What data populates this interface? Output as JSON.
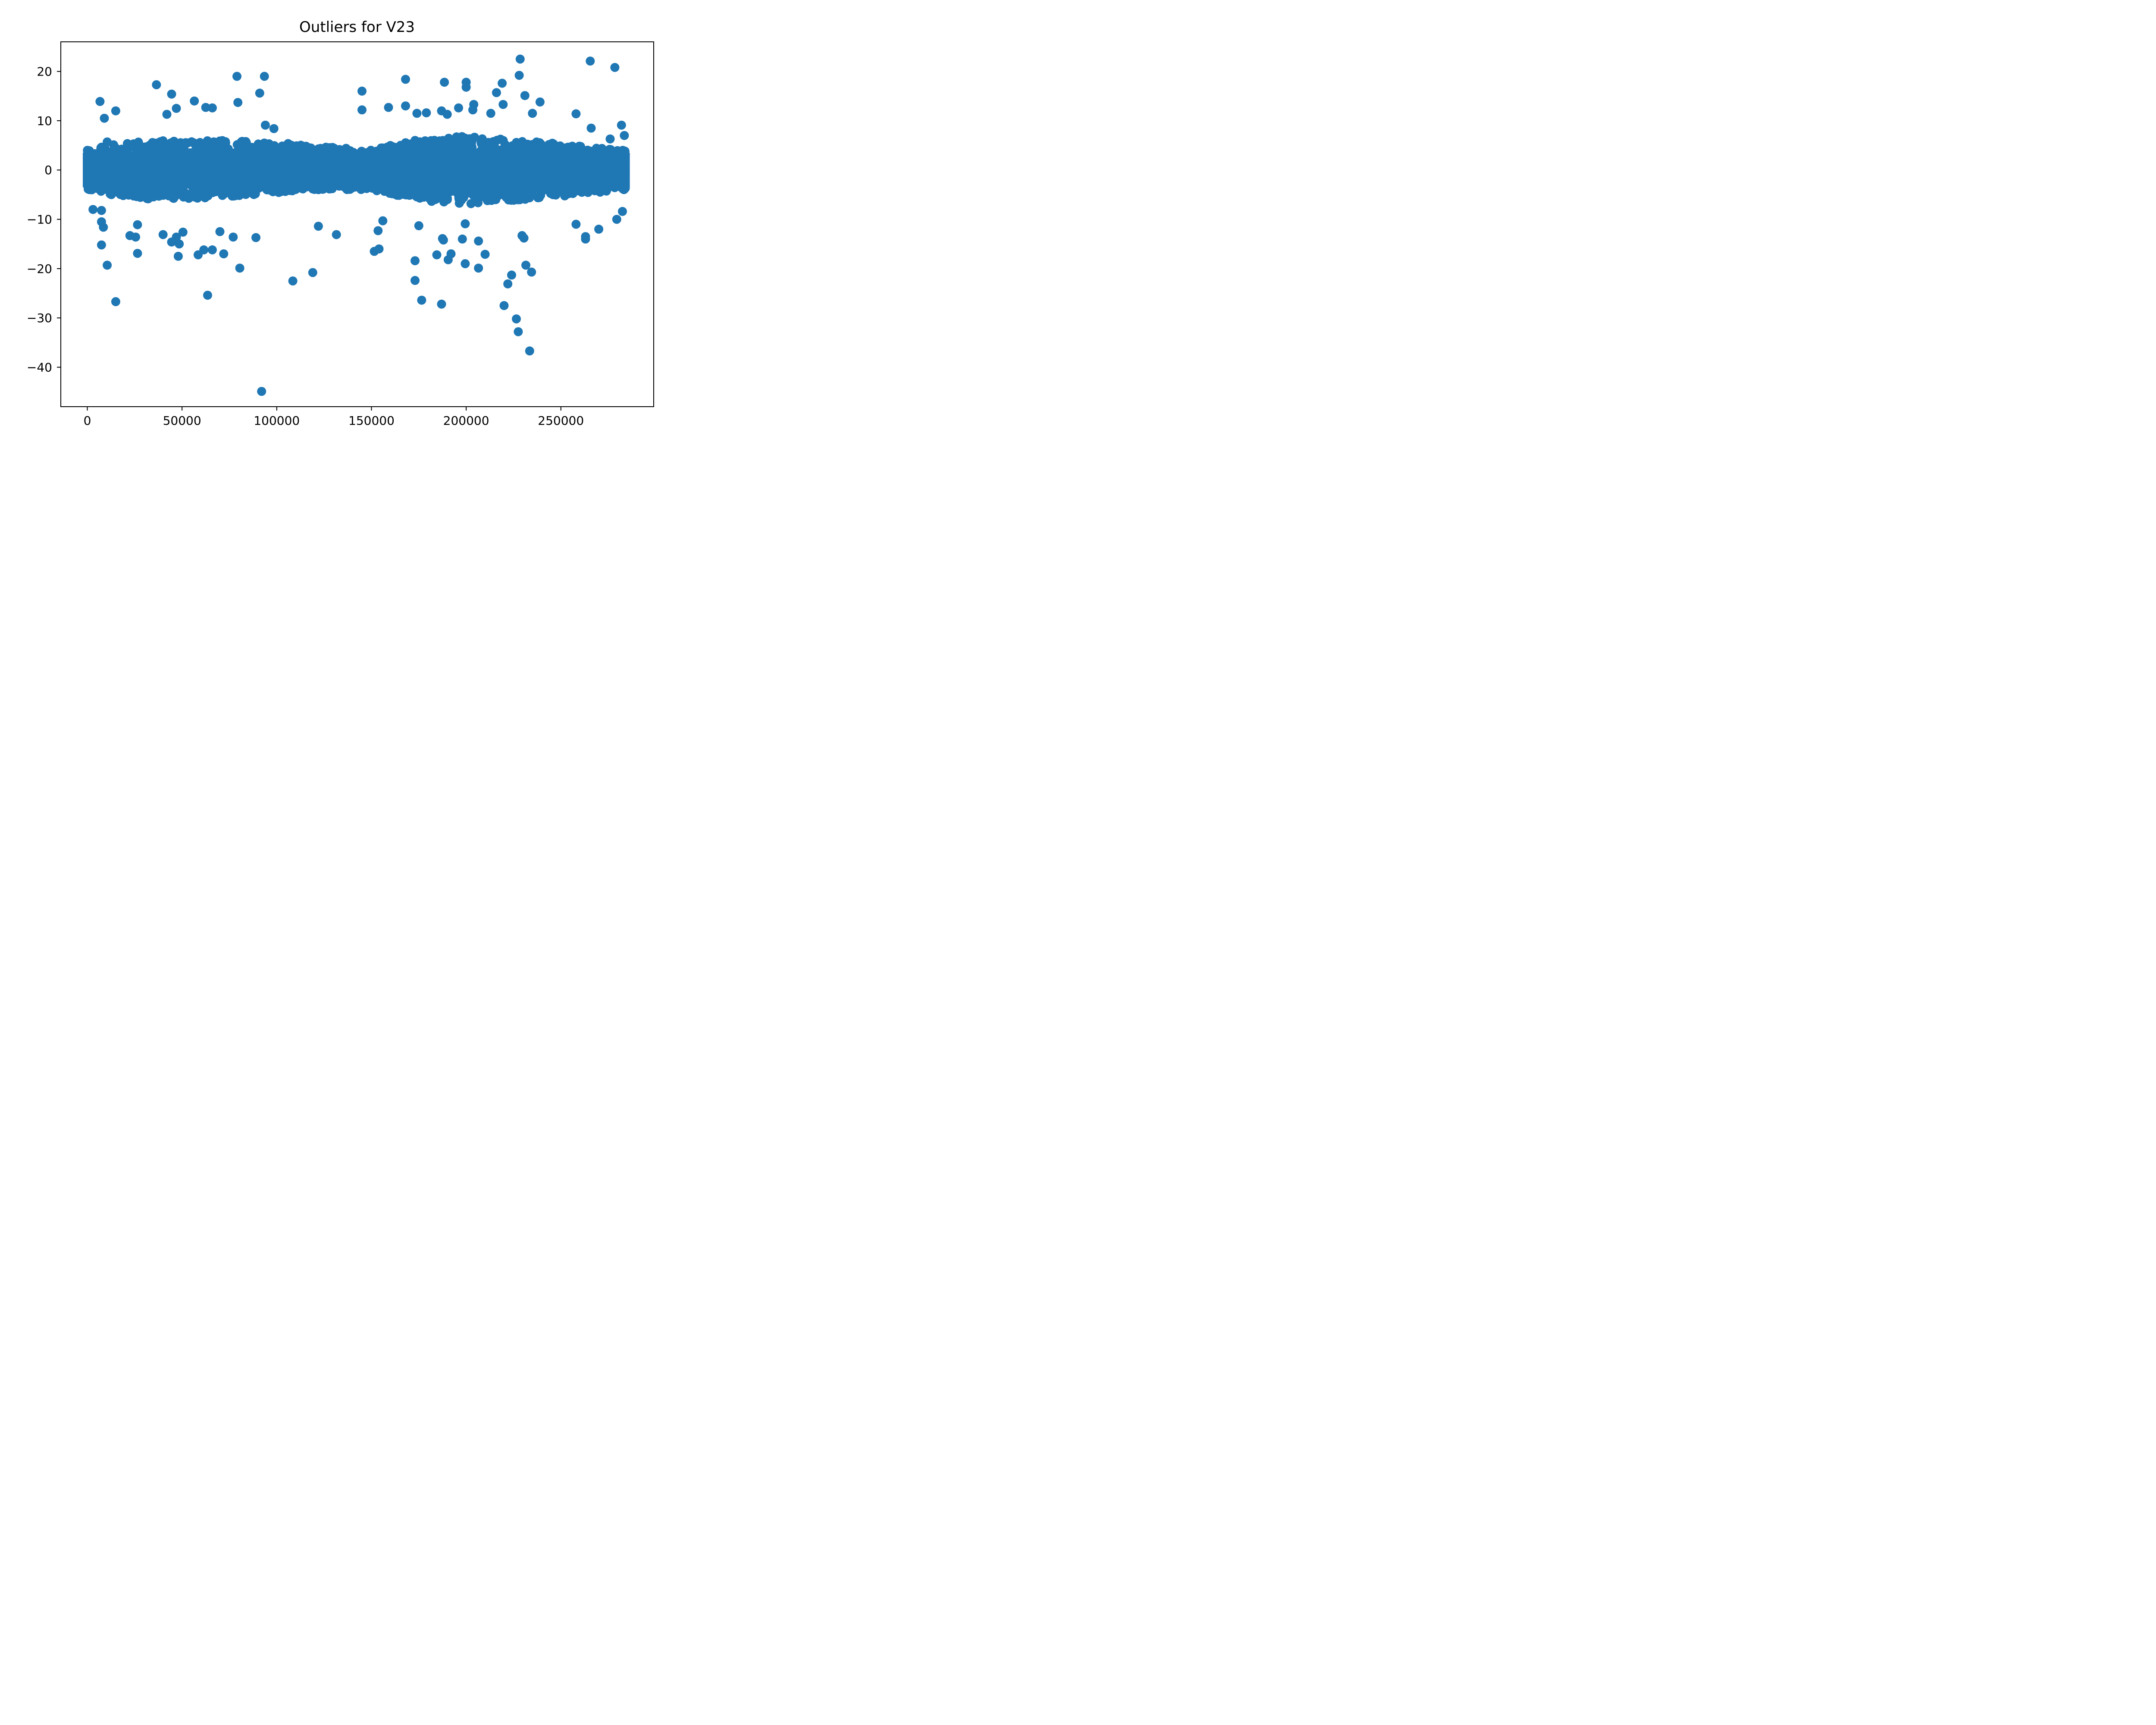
{
  "chart_data": {
    "type": "scatter",
    "title": "Outliers for V23",
    "xlabel": "",
    "ylabel": "",
    "xlim": [
      -14000,
      299000
    ],
    "ylim": [
      -48,
      26
    ],
    "x_ticks": [
      0,
      50000,
      100000,
      150000,
      200000,
      250000
    ],
    "x_tick_labels": [
      "0",
      "50000",
      "100000",
      "150000",
      "200000",
      "250000"
    ],
    "y_ticks": [
      20,
      10,
      0,
      -10,
      -20,
      -30,
      -40
    ],
    "y_tick_labels": [
      "20",
      "10",
      "0",
      "−10",
      "−20",
      "−30",
      "−40"
    ],
    "grid": false,
    "legend": "none",
    "color": "#1f77b4",
    "dense_band": {
      "x_range": [
        0,
        284000
      ],
      "y_min_typical": -3.5,
      "y_max_typical": 3.5,
      "envelope": [
        {
          "x": 0,
          "y_low": -4,
          "y_high": 4
        },
        {
          "x": 10000,
          "y_low": -5,
          "y_high": 5
        },
        {
          "x": 30000,
          "y_low": -6,
          "y_high": 6
        },
        {
          "x": 60000,
          "y_low": -6,
          "y_high": 6
        },
        {
          "x": 90000,
          "y_low": -5,
          "y_high": 6
        },
        {
          "x": 120000,
          "y_low": -4,
          "y_high": 5
        },
        {
          "x": 150000,
          "y_low": -4,
          "y_high": 4
        },
        {
          "x": 170000,
          "y_low": -6,
          "y_high": 6
        },
        {
          "x": 200000,
          "y_low": -7,
          "y_high": 7
        },
        {
          "x": 230000,
          "y_low": -6,
          "y_high": 6
        },
        {
          "x": 260000,
          "y_low": -5,
          "y_high": 5
        },
        {
          "x": 284000,
          "y_low": -4,
          "y_high": 4
        }
      ]
    },
    "points": [
      {
        "x": 6700,
        "y": 13.9
      },
      {
        "x": 9000,
        "y": 10.5
      },
      {
        "x": 15000,
        "y": 12.0
      },
      {
        "x": 10500,
        "y": 5.7
      },
      {
        "x": 36500,
        "y": 17.3
      },
      {
        "x": 44500,
        "y": 15.4
      },
      {
        "x": 47000,
        "y": 12.5
      },
      {
        "x": 42000,
        "y": 11.3
      },
      {
        "x": 56500,
        "y": 14.0
      },
      {
        "x": 62500,
        "y": 12.7
      },
      {
        "x": 66000,
        "y": 12.6
      },
      {
        "x": 79000,
        "y": 19.0
      },
      {
        "x": 79500,
        "y": 13.7
      },
      {
        "x": 91000,
        "y": 15.6
      },
      {
        "x": 93500,
        "y": 19.0
      },
      {
        "x": 94000,
        "y": 9.1
      },
      {
        "x": 98500,
        "y": 8.4
      },
      {
        "x": 145000,
        "y": 16.0
      },
      {
        "x": 145000,
        "y": 12.2
      },
      {
        "x": 159000,
        "y": 12.7
      },
      {
        "x": 168000,
        "y": 18.4
      },
      {
        "x": 168000,
        "y": 13.0
      },
      {
        "x": 174000,
        "y": 11.5
      },
      {
        "x": 179000,
        "y": 11.6
      },
      {
        "x": 188500,
        "y": 17.8
      },
      {
        "x": 187000,
        "y": 12.0
      },
      {
        "x": 190000,
        "y": 11.3
      },
      {
        "x": 196000,
        "y": 12.6
      },
      {
        "x": 200000,
        "y": 17.8
      },
      {
        "x": 200000,
        "y": 16.8
      },
      {
        "x": 204000,
        "y": 13.3
      },
      {
        "x": 203500,
        "y": 12.2
      },
      {
        "x": 213000,
        "y": 11.5
      },
      {
        "x": 216000,
        "y": 15.7
      },
      {
        "x": 219000,
        "y": 17.6
      },
      {
        "x": 219500,
        "y": 13.3
      },
      {
        "x": 228500,
        "y": 22.5
      },
      {
        "x": 228000,
        "y": 19.2
      },
      {
        "x": 231000,
        "y": 15.1
      },
      {
        "x": 235000,
        "y": 11.5
      },
      {
        "x": 239000,
        "y": 13.8
      },
      {
        "x": 258000,
        "y": 11.4
      },
      {
        "x": 265500,
        "y": 22.1
      },
      {
        "x": 278500,
        "y": 20.8
      },
      {
        "x": 266000,
        "y": 8.5
      },
      {
        "x": 282000,
        "y": 9.1
      },
      {
        "x": 283500,
        "y": 7.0
      },
      {
        "x": 276000,
        "y": 6.3
      },
      {
        "x": 3000,
        "y": -8.0
      },
      {
        "x": 7500,
        "y": -8.2
      },
      {
        "x": 7500,
        "y": -10.5
      },
      {
        "x": 8500,
        "y": -11.6
      },
      {
        "x": 7500,
        "y": -15.2
      },
      {
        "x": 10500,
        "y": -19.3
      },
      {
        "x": 15000,
        "y": -26.7
      },
      {
        "x": 22500,
        "y": -13.3
      },
      {
        "x": 25500,
        "y": -13.6
      },
      {
        "x": 26500,
        "y": -11.1
      },
      {
        "x": 26500,
        "y": -16.9
      },
      {
        "x": 40000,
        "y": -13.1
      },
      {
        "x": 44500,
        "y": -14.6
      },
      {
        "x": 47000,
        "y": -13.6
      },
      {
        "x": 48000,
        "y": -17.5
      },
      {
        "x": 48500,
        "y": -15.0
      },
      {
        "x": 50500,
        "y": -12.6
      },
      {
        "x": 58500,
        "y": -17.2
      },
      {
        "x": 61500,
        "y": -16.2
      },
      {
        "x": 63500,
        "y": -25.4
      },
      {
        "x": 66000,
        "y": -16.2
      },
      {
        "x": 70000,
        "y": -12.5
      },
      {
        "x": 72000,
        "y": -17.0
      },
      {
        "x": 77000,
        "y": -13.6
      },
      {
        "x": 80500,
        "y": -19.9
      },
      {
        "x": 89000,
        "y": -13.7
      },
      {
        "x": 92000,
        "y": -44.9
      },
      {
        "x": 108500,
        "y": -22.5
      },
      {
        "x": 119000,
        "y": -20.8
      },
      {
        "x": 122000,
        "y": -11.4
      },
      {
        "x": 131500,
        "y": -13.1
      },
      {
        "x": 151500,
        "y": -16.5
      },
      {
        "x": 154000,
        "y": -16.0
      },
      {
        "x": 153500,
        "y": -12.3
      },
      {
        "x": 156000,
        "y": -10.3
      },
      {
        "x": 173000,
        "y": -18.4
      },
      {
        "x": 173000,
        "y": -22.4
      },
      {
        "x": 175000,
        "y": -11.3
      },
      {
        "x": 176500,
        "y": -26.4
      },
      {
        "x": 184500,
        "y": -17.2
      },
      {
        "x": 187000,
        "y": -27.2
      },
      {
        "x": 187500,
        "y": -13.9
      },
      {
        "x": 188000,
        "y": -14.2
      },
      {
        "x": 190500,
        "y": -18.2
      },
      {
        "x": 192000,
        "y": -17.0
      },
      {
        "x": 198000,
        "y": -14.0
      },
      {
        "x": 199500,
        "y": -19.0
      },
      {
        "x": 199500,
        "y": -10.9
      },
      {
        "x": 206500,
        "y": -14.4
      },
      {
        "x": 206500,
        "y": -19.9
      },
      {
        "x": 210000,
        "y": -17.1
      },
      {
        "x": 220000,
        "y": -27.5
      },
      {
        "x": 222000,
        "y": -23.1
      },
      {
        "x": 224000,
        "y": -21.3
      },
      {
        "x": 226500,
        "y": -30.2
      },
      {
        "x": 227500,
        "y": -32.8
      },
      {
        "x": 229500,
        "y": -13.3
      },
      {
        "x": 230500,
        "y": -13.8
      },
      {
        "x": 231500,
        "y": -19.3
      },
      {
        "x": 234500,
        "y": -20.7
      },
      {
        "x": 233500,
        "y": -36.7
      },
      {
        "x": 263000,
        "y": -14.0
      },
      {
        "x": 263000,
        "y": -13.5
      },
      {
        "x": 270000,
        "y": -12.0
      },
      {
        "x": 258000,
        "y": -11.0
      },
      {
        "x": 279500,
        "y": -10.0
      },
      {
        "x": 282500,
        "y": -8.4
      },
      {
        "x": 283500,
        "y": -3.9
      }
    ]
  }
}
